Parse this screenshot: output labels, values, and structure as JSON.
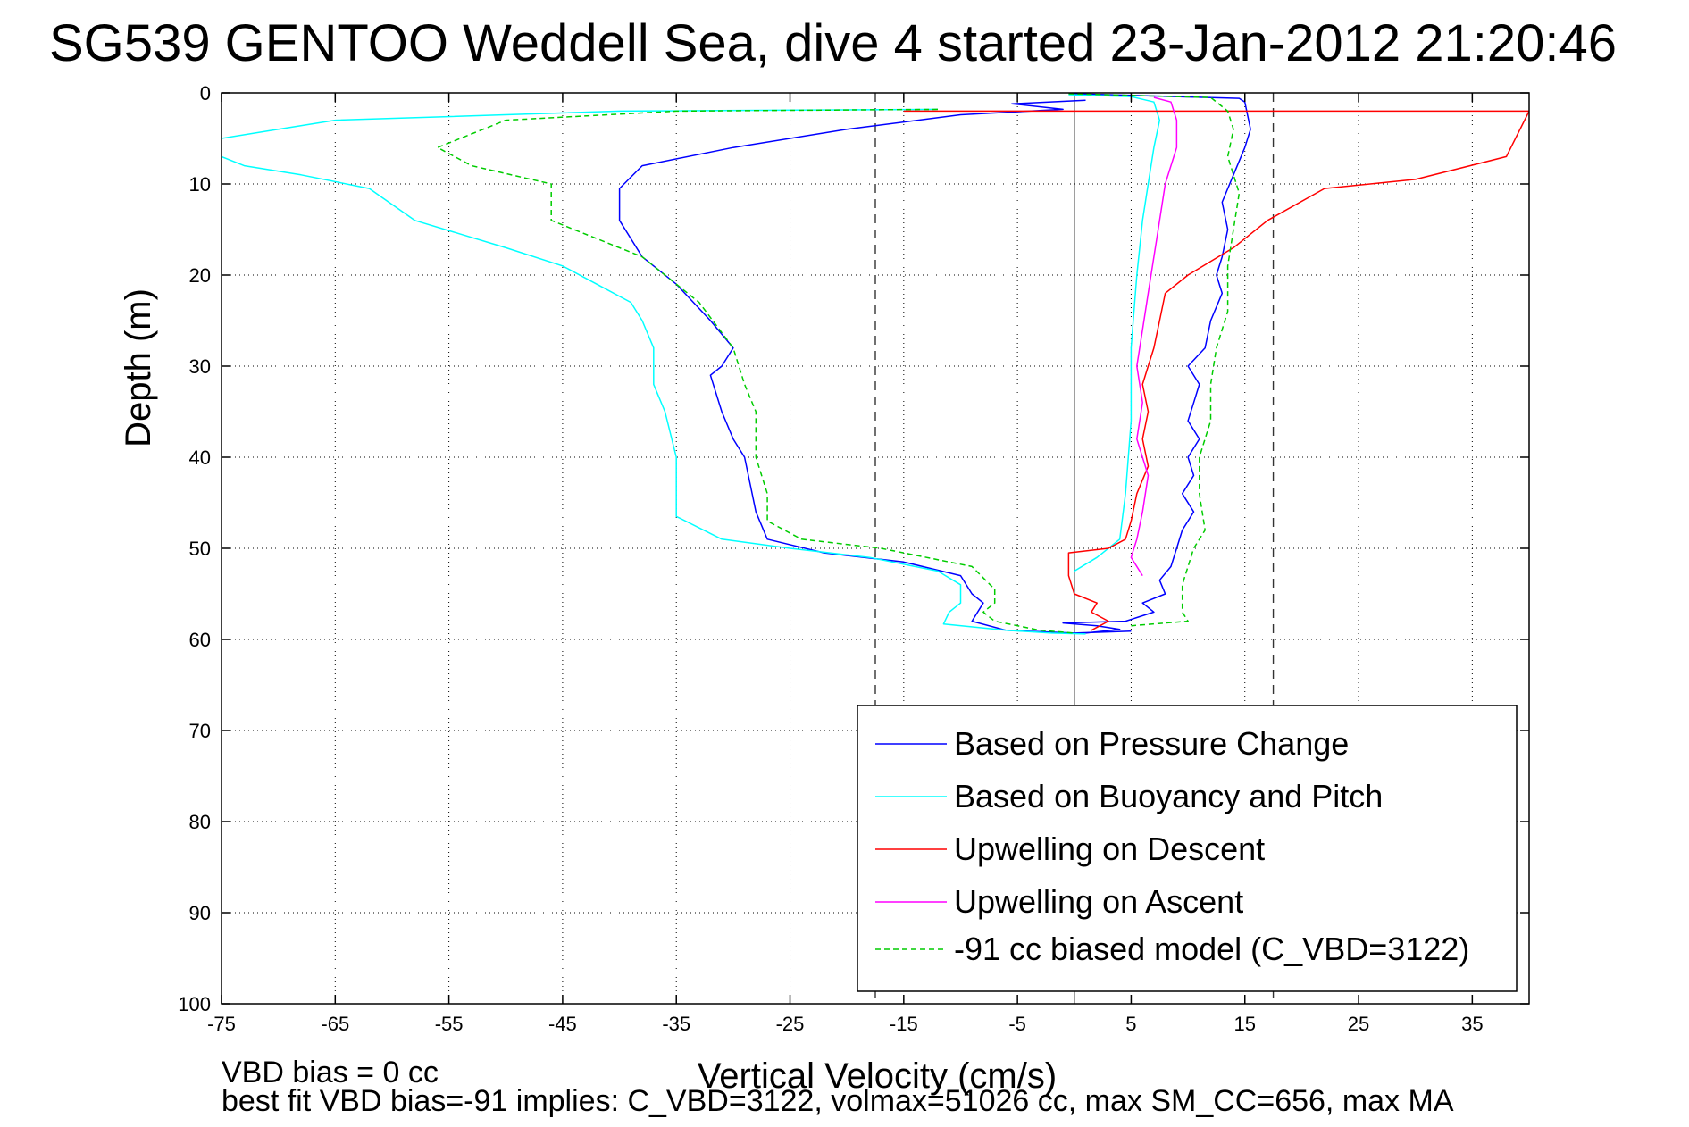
{
  "chart_data": {
    "type": "line",
    "title": "SG539 GENTOO Weddell Sea, dive 4 started 23-Jan-2012 21:20:46",
    "xlabel": "Vertical Velocity (cm/s)",
    "ylabel": "Depth (m)",
    "xlim": [
      -75,
      40
    ],
    "ylim": [
      0,
      100
    ],
    "y_reversed": true,
    "grid": true,
    "x_ticks": [
      -75,
      -65,
      -55,
      -45,
      -35,
      -25,
      -15,
      -5,
      5,
      15,
      25,
      35
    ],
    "y_ticks": [
      0,
      10,
      20,
      30,
      40,
      50,
      60,
      70,
      80,
      90,
      100
    ],
    "vertical_reference_lines": {
      "dashed": [
        -17.5,
        17.5
      ],
      "solid": [
        0
      ]
    },
    "legend_position": "bottom-right",
    "notes": [
      "VBD bias = 0 cc",
      "best fit VBD bias=-91 implies: C_VBD=3122, volmax=51026 cc, max SM_CC=656, max MA"
    ],
    "series": [
      {
        "name": "Based on Pressure Change",
        "color": "#0000ff",
        "style": "solid",
        "descent": [
          [
            1,
            0.8
          ],
          [
            -5.5,
            1.2
          ],
          [
            -1,
            1.8
          ],
          [
            -10,
            2.4
          ],
          [
            -20,
            4
          ],
          [
            -30,
            6
          ],
          [
            -38,
            8
          ],
          [
            -40,
            10.5
          ],
          [
            -40,
            14
          ],
          [
            -38,
            18
          ],
          [
            -35,
            21
          ],
          [
            -32,
            25
          ],
          [
            -30,
            28
          ],
          [
            -31,
            30
          ],
          [
            -32,
            31
          ],
          [
            -31,
            35
          ],
          [
            -30,
            38
          ],
          [
            -29,
            40
          ],
          [
            -28.5,
            43
          ],
          [
            -28,
            46
          ],
          [
            -27,
            49
          ],
          [
            -22,
            50.5
          ],
          [
            -15,
            51.5
          ],
          [
            -10,
            53
          ],
          [
            -9,
            55
          ],
          [
            -8,
            56
          ],
          [
            -9,
            58
          ],
          [
            -6,
            59
          ],
          [
            0,
            59.3
          ],
          [
            5,
            59.1
          ]
        ],
        "ascent": [
          [
            0,
            0.1
          ],
          [
            14.5,
            0.6
          ],
          [
            15,
            1
          ],
          [
            15.5,
            4
          ],
          [
            15,
            6
          ],
          [
            14,
            9
          ],
          [
            13,
            12
          ],
          [
            13.5,
            15
          ],
          [
            13,
            18
          ],
          [
            12.5,
            20
          ],
          [
            13,
            22
          ],
          [
            12,
            25
          ],
          [
            11.5,
            28
          ],
          [
            10,
            30
          ],
          [
            11,
            32
          ],
          [
            10.5,
            34
          ],
          [
            10,
            36
          ],
          [
            11,
            38
          ],
          [
            10,
            40
          ],
          [
            10.5,
            42
          ],
          [
            9.5,
            44
          ],
          [
            10.5,
            46
          ],
          [
            9.5,
            48
          ],
          [
            9,
            50
          ],
          [
            8.5,
            52
          ],
          [
            7.5,
            53.5
          ],
          [
            8,
            55
          ],
          [
            6,
            56
          ],
          [
            7,
            57
          ],
          [
            4.5,
            58
          ],
          [
            -1,
            58.2
          ],
          [
            2,
            58.5
          ],
          [
            4,
            58.9
          ],
          [
            1,
            59.3
          ]
        ]
      },
      {
        "name": "Based on Buoyancy and Pitch",
        "color": "#00ffff",
        "style": "solid",
        "descent": [
          [
            -12,
            1.8
          ],
          [
            -40,
            2
          ],
          [
            -65,
            3
          ],
          [
            -70,
            4
          ],
          [
            -75,
            5
          ],
          [
            -75,
            7
          ],
          [
            -73,
            8
          ],
          [
            -68,
            9
          ],
          [
            -62,
            10.5
          ],
          [
            -58,
            14
          ],
          [
            -50,
            17
          ],
          [
            -45,
            19
          ],
          [
            -42,
            21
          ],
          [
            -39,
            23
          ],
          [
            -38,
            25
          ],
          [
            -37,
            28
          ],
          [
            -37,
            32
          ],
          [
            -36,
            35
          ],
          [
            -35,
            40
          ],
          [
            -35,
            44
          ],
          [
            -35,
            46.5
          ],
          [
            -31,
            49
          ],
          [
            -25,
            50
          ],
          [
            -18,
            51
          ],
          [
            -12,
            52.5
          ],
          [
            -10,
            54
          ],
          [
            -10,
            56
          ],
          [
            -11,
            57
          ],
          [
            -11.5,
            58.3
          ],
          [
            -6,
            59
          ],
          [
            -2,
            59.3
          ],
          [
            1,
            59.4
          ]
        ],
        "ascent": [
          [
            -0.5,
            0.2
          ],
          [
            5,
            0.4
          ],
          [
            7,
            1
          ],
          [
            7.5,
            3
          ],
          [
            7,
            6
          ],
          [
            6.5,
            10
          ],
          [
            6,
            14
          ],
          [
            5.5,
            20
          ],
          [
            5,
            28
          ],
          [
            5,
            36
          ],
          [
            4.5,
            44
          ],
          [
            4,
            49
          ],
          [
            2,
            51
          ],
          [
            0,
            52.5
          ]
        ]
      },
      {
        "name": "Upwelling on Descent",
        "color": "#ff0000",
        "style": "solid",
        "descent": [
          [
            -15,
            2
          ],
          [
            40,
            2
          ],
          [
            38,
            7
          ],
          [
            30,
            9.5
          ],
          [
            22,
            10.5
          ],
          [
            17,
            14
          ],
          [
            14,
            17
          ],
          [
            10,
            20
          ],
          [
            8,
            22
          ],
          [
            7.5,
            25
          ],
          [
            7,
            28
          ],
          [
            6.5,
            30
          ],
          [
            6,
            32
          ],
          [
            6.5,
            35
          ],
          [
            6,
            38
          ],
          [
            6.5,
            41
          ],
          [
            5.5,
            44
          ],
          [
            5,
            47
          ],
          [
            4.5,
            49
          ],
          [
            3,
            50
          ],
          [
            -0.5,
            50.5
          ],
          [
            -0.5,
            53
          ],
          [
            0,
            55
          ],
          [
            2,
            56
          ],
          [
            1.5,
            57
          ],
          [
            3,
            58
          ],
          [
            1.5,
            59
          ]
        ]
      },
      {
        "name": "Upwelling on Ascent",
        "color": "#ff00ff",
        "style": "solid",
        "ascent": [
          [
            7,
            0.5
          ],
          [
            8.5,
            1
          ],
          [
            9,
            3
          ],
          [
            9,
            6
          ],
          [
            8,
            10
          ],
          [
            7.5,
            14
          ],
          [
            7,
            18
          ],
          [
            6.5,
            22
          ],
          [
            6,
            26
          ],
          [
            5.5,
            30
          ],
          [
            6,
            34
          ],
          [
            5.5,
            38
          ],
          [
            6.5,
            42
          ],
          [
            6,
            46
          ],
          [
            5.5,
            49
          ],
          [
            5,
            51
          ],
          [
            6,
            53
          ]
        ]
      },
      {
        "name": "-91 cc biased model (C_VBD=3122)",
        "color": "#00cc00",
        "style": "dashed",
        "descent": [
          [
            -12,
            1.8
          ],
          [
            -35,
            2
          ],
          [
            -50,
            3
          ],
          [
            -56,
            6
          ],
          [
            -53,
            8
          ],
          [
            -46,
            10
          ],
          [
            -46,
            14
          ],
          [
            -38,
            18
          ],
          [
            -35,
            21
          ],
          [
            -33,
            23
          ],
          [
            -30,
            28
          ],
          [
            -29,
            32
          ],
          [
            -28,
            35
          ],
          [
            -28,
            40
          ],
          [
            -27,
            44
          ],
          [
            -27,
            47
          ],
          [
            -24,
            49
          ],
          [
            -17,
            50
          ],
          [
            -9,
            52
          ],
          [
            -7,
            54.5
          ],
          [
            -7,
            56
          ],
          [
            -8,
            57
          ],
          [
            -7,
            58
          ],
          [
            -3,
            59
          ],
          [
            0,
            59.3
          ]
        ],
        "ascent": [
          [
            -0.5,
            0.1
          ],
          [
            12,
            0.5
          ],
          [
            13.5,
            2
          ],
          [
            14,
            4
          ],
          [
            13.5,
            7
          ],
          [
            14.5,
            11
          ],
          [
            14,
            15
          ],
          [
            13.5,
            19
          ],
          [
            13.5,
            24
          ],
          [
            12.5,
            28
          ],
          [
            12,
            32
          ],
          [
            12,
            36
          ],
          [
            11,
            40
          ],
          [
            11,
            44
          ],
          [
            11.5,
            48
          ],
          [
            10.5,
            50
          ],
          [
            10,
            52
          ],
          [
            9.5,
            54
          ],
          [
            9.5,
            57
          ],
          [
            10,
            58
          ],
          [
            5,
            58.5
          ]
        ]
      }
    ]
  }
}
